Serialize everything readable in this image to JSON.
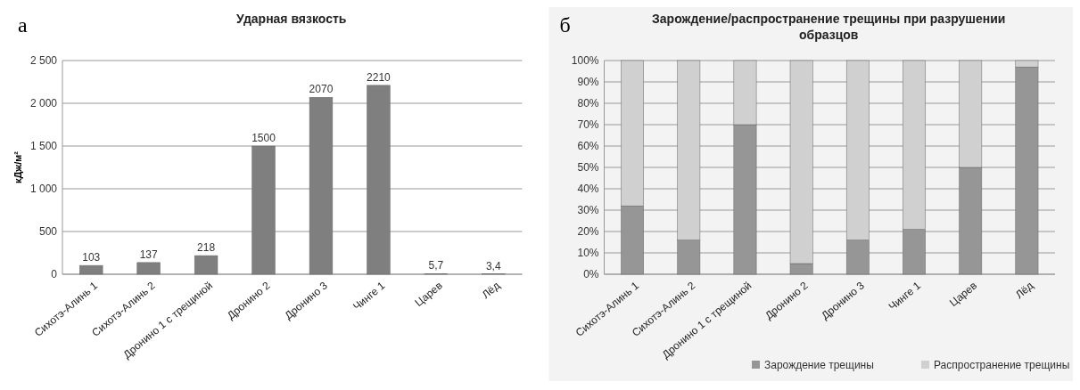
{
  "chart_data": [
    {
      "type": "bar",
      "title": "Ударная вязкость",
      "ylabel": "кДж/м²",
      "annotations": [
        "а"
      ],
      "categories": [
        "Сихотэ-Алинь 1",
        "Сихотэ-Алинь 2",
        "Дронино 1 с трещиной",
        "Дронино 2",
        "Дронино 3",
        "Чинге 1",
        "Царев",
        "Лёд"
      ],
      "values": [
        103,
        137,
        218,
        1500,
        2070,
        2210,
        5.7,
        3.4
      ],
      "color": "#7f7f7f",
      "value_labels": [
        "103",
        "137",
        "218",
        "1500",
        "2070",
        "2210",
        "5,7",
        "3,4"
      ],
      "ylim": [
        0,
        2500
      ],
      "yticks": [
        0,
        500,
        {
          "value": 1000,
          "label": "1 000"
        },
        {
          "value": 1500,
          "label": "1 500"
        },
        {
          "value": 2000,
          "label": "2 000"
        },
        {
          "value": 2500,
          "label": "2 500"
        }
      ],
      "grid": "y",
      "legend": false
    },
    {
      "type": "bar",
      "title": "Зарождение/распространение трещины при разрушении образцов",
      "annotations": [
        "б"
      ],
      "stacked": true,
      "categories": [
        "Сихотэ-Алинь 1",
        "Сихотэ-Алинь 2",
        "Дронино 1 с трещиной",
        "Дронино 2",
        "Дронино 3",
        "Чинге 1",
        "Царев",
        "Лёд"
      ],
      "series": [
        {
          "name": "Зарождение трещины",
          "color": "#969696",
          "values": [
            32,
            16,
            70,
            5,
            16,
            21,
            50,
            97
          ]
        },
        {
          "name": "Распространение трещины",
          "color": "#d0d0d0",
          "values": [
            68,
            84,
            30,
            95,
            84,
            79,
            50,
            3
          ]
        }
      ],
      "ylim": [
        0,
        100
      ],
      "yticks": [
        {
          "value": 0,
          "label": "0%"
        },
        {
          "value": 10,
          "label": "10%"
        },
        {
          "value": 20,
          "label": "20%"
        },
        {
          "value": 30,
          "label": "30%"
        },
        {
          "value": 40,
          "label": "40%"
        },
        {
          "value": 50,
          "label": "50%"
        },
        {
          "value": 60,
          "label": "60%"
        },
        {
          "value": 70,
          "label": "70%"
        },
        {
          "value": 80,
          "label": "80%"
        },
        {
          "value": 90,
          "label": "90%"
        },
        {
          "value": 100,
          "label": "100%"
        }
      ],
      "grid": "y",
      "legend": "bottom"
    }
  ]
}
